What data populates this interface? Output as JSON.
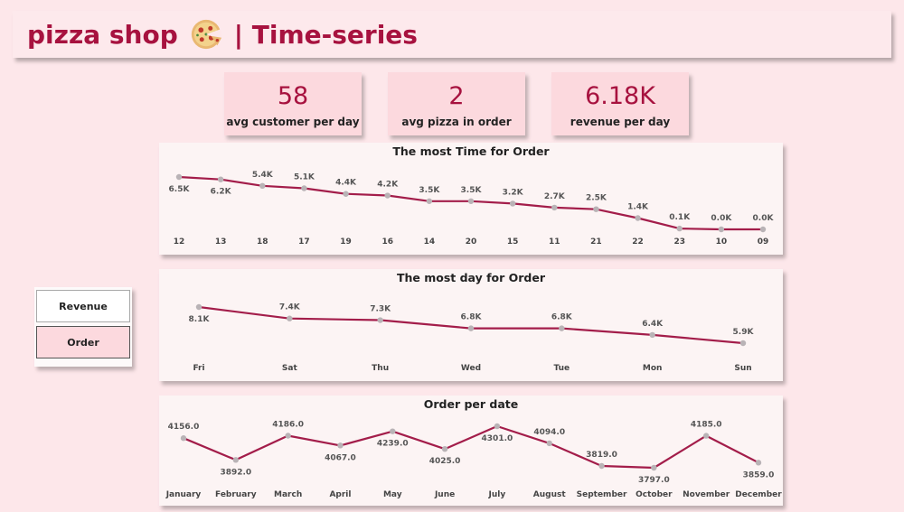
{
  "header": {
    "title_left": "pizza shop",
    "title_right": "| Time-series"
  },
  "kpis": [
    {
      "value": "58",
      "label": "avg customer per day"
    },
    {
      "value": "2",
      "label": "avg pizza in order"
    },
    {
      "value": "6.18K",
      "label": "revenue per day"
    }
  ],
  "slicer": {
    "items": [
      {
        "label": "Revenue",
        "selected": false
      },
      {
        "label": "Order",
        "selected": true
      }
    ]
  },
  "colors": {
    "accent": "#a7123f",
    "line": "#a31d4a",
    "marker": "#b9b3b6",
    "background": "#fde7ea",
    "kpi_bg": "#fcd9de"
  },
  "chart_data": [
    {
      "type": "line",
      "title": "The most Time for Order",
      "categories": [
        "12",
        "13",
        "18",
        "17",
        "19",
        "16",
        "14",
        "20",
        "15",
        "11",
        "21",
        "22",
        "23",
        "10",
        "09"
      ],
      "values": [
        6500,
        6200,
        5400,
        5100,
        4400,
        4200,
        3500,
        3500,
        3200,
        2700,
        2500,
        1400,
        100,
        0,
        0
      ],
      "data_labels": [
        "6.5K",
        "6.2K",
        "5.4K",
        "5.1K",
        "4.4K",
        "4.2K",
        "3.5K",
        "3.5K",
        "3.2K",
        "2.7K",
        "2.5K",
        "1.4K",
        "0.1K",
        "0.0K",
        "0.0K"
      ],
      "label_below": [
        true,
        true,
        false,
        false,
        false,
        false,
        false,
        false,
        false,
        false,
        false,
        false,
        false,
        false,
        false
      ]
    },
    {
      "type": "line",
      "title": "The most day for Order",
      "categories": [
        "Fri",
        "Sat",
        "Thu",
        "Wed",
        "Tue",
        "Mon",
        "Sun"
      ],
      "values": [
        8100,
        7400,
        7300,
        6800,
        6800,
        6400,
        5900
      ],
      "data_labels": [
        "8.1K",
        "7.4K",
        "7.3K",
        "6.8K",
        "6.8K",
        "6.4K",
        "5.9K"
      ],
      "label_below": [
        true,
        false,
        false,
        false,
        false,
        false,
        false
      ]
    },
    {
      "type": "line",
      "title": "Order per date",
      "categories": [
        "January",
        "February",
        "March",
        "April",
        "May",
        "June",
        "July",
        "August",
        "September",
        "October",
        "November",
        "December"
      ],
      "values": [
        4156.0,
        3892.0,
        4186.0,
        4067.0,
        4239.0,
        4025.0,
        4301.0,
        4094.0,
        3819.0,
        3797.0,
        4185.0,
        3859.0
      ],
      "data_labels": [
        "4156.0",
        "3892.0",
        "4186.0",
        "4067.0",
        "4239.0",
        "4025.0",
        "4301.0",
        "4094.0",
        "3819.0",
        "3797.0",
        "4185.0",
        "3859.0"
      ],
      "label_below": [
        false,
        true,
        false,
        true,
        true,
        true,
        true,
        false,
        false,
        true,
        false,
        true
      ]
    }
  ]
}
